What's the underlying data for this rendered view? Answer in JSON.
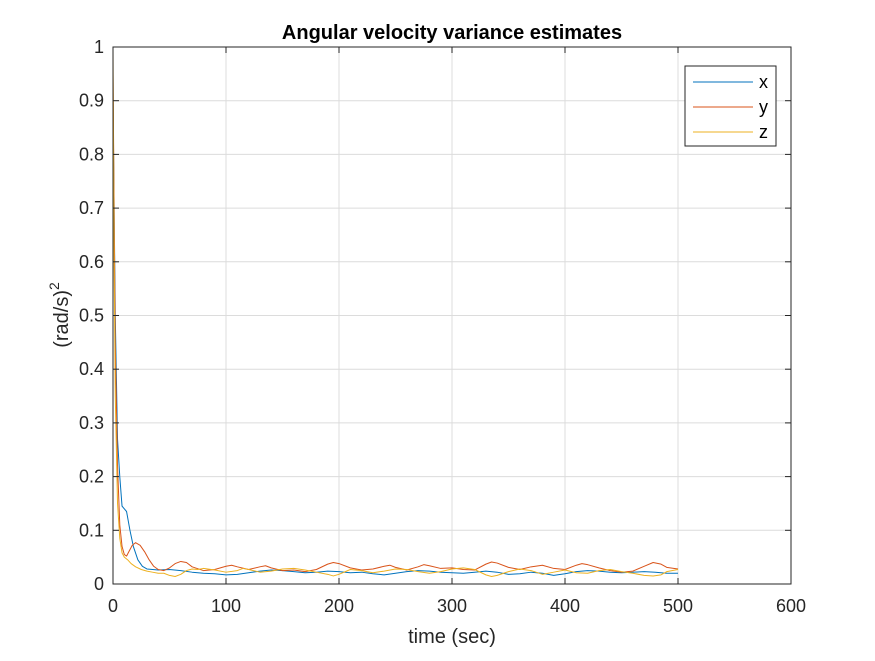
{
  "chart_data": {
    "type": "line",
    "title": "Angular velocity variance estimates",
    "xlabel": "time (sec)",
    "ylabel_base": "(rad/s)",
    "ylabel_exponent": "2",
    "xlim": [
      0,
      600
    ],
    "ylim": [
      0,
      1
    ],
    "xticks": [
      0,
      100,
      200,
      300,
      400,
      500,
      600
    ],
    "yticks": [
      0,
      0.1,
      0.2,
      0.3,
      0.4,
      0.5,
      0.6,
      0.7,
      0.8,
      0.9,
      1
    ],
    "xtick_labels": [
      "0",
      "100",
      "200",
      "300",
      "400",
      "500",
      "600"
    ],
    "ytick_labels": [
      "0",
      "0.1",
      "0.2",
      "0.3",
      "0.4",
      "0.5",
      "0.6",
      "0.7",
      "0.8",
      "0.9",
      "1"
    ],
    "grid": true,
    "legend_position": "top-right",
    "series": [
      {
        "name": "x",
        "color": "#0072BD",
        "points": [
          [
            0,
            0.9
          ],
          [
            2,
            0.5
          ],
          [
            4,
            0.27
          ],
          [
            6,
            0.2
          ],
          [
            8,
            0.145
          ],
          [
            10,
            0.14
          ],
          [
            12,
            0.135
          ],
          [
            15,
            0.1
          ],
          [
            18,
            0.07
          ],
          [
            22,
            0.045
          ],
          [
            26,
            0.033
          ],
          [
            30,
            0.028
          ],
          [
            35,
            0.027
          ],
          [
            40,
            0.026
          ],
          [
            50,
            0.027
          ],
          [
            60,
            0.025
          ],
          [
            70,
            0.022
          ],
          [
            80,
            0.02
          ],
          [
            90,
            0.019
          ],
          [
            100,
            0.017
          ],
          [
            110,
            0.018
          ],
          [
            120,
            0.021
          ],
          [
            130,
            0.024
          ],
          [
            140,
            0.026
          ],
          [
            150,
            0.025
          ],
          [
            160,
            0.023
          ],
          [
            170,
            0.021
          ],
          [
            180,
            0.022
          ],
          [
            190,
            0.024
          ],
          [
            200,
            0.023
          ],
          [
            210,
            0.021
          ],
          [
            220,
            0.022
          ],
          [
            230,
            0.019
          ],
          [
            240,
            0.017
          ],
          [
            250,
            0.02
          ],
          [
            260,
            0.023
          ],
          [
            270,
            0.025
          ],
          [
            280,
            0.024
          ],
          [
            290,
            0.022
          ],
          [
            300,
            0.021
          ],
          [
            310,
            0.02
          ],
          [
            320,
            0.022
          ],
          [
            330,
            0.024
          ],
          [
            340,
            0.022
          ],
          [
            350,
            0.018
          ],
          [
            360,
            0.019
          ],
          [
            370,
            0.022
          ],
          [
            380,
            0.02
          ],
          [
            390,
            0.016
          ],
          [
            400,
            0.019
          ],
          [
            410,
            0.023
          ],
          [
            420,
            0.025
          ],
          [
            430,
            0.024
          ],
          [
            440,
            0.022
          ],
          [
            450,
            0.021
          ],
          [
            460,
            0.022
          ],
          [
            470,
            0.023
          ],
          [
            480,
            0.022
          ],
          [
            490,
            0.02
          ],
          [
            500,
            0.02
          ]
        ]
      },
      {
        "name": "y",
        "color": "#D95319",
        "points": [
          [
            0,
            0.95
          ],
          [
            2,
            0.45
          ],
          [
            4,
            0.22
          ],
          [
            6,
            0.11
          ],
          [
            8,
            0.07
          ],
          [
            10,
            0.055
          ],
          [
            12,
            0.052
          ],
          [
            14,
            0.06
          ],
          [
            17,
            0.072
          ],
          [
            20,
            0.077
          ],
          [
            24,
            0.072
          ],
          [
            28,
            0.06
          ],
          [
            32,
            0.045
          ],
          [
            36,
            0.033
          ],
          [
            40,
            0.027
          ],
          [
            45,
            0.025
          ],
          [
            50,
            0.03
          ],
          [
            55,
            0.038
          ],
          [
            60,
            0.042
          ],
          [
            65,
            0.04
          ],
          [
            70,
            0.032
          ],
          [
            80,
            0.025
          ],
          [
            90,
            0.027
          ],
          [
            100,
            0.033
          ],
          [
            105,
            0.035
          ],
          [
            110,
            0.032
          ],
          [
            120,
            0.027
          ],
          [
            130,
            0.032
          ],
          [
            135,
            0.034
          ],
          [
            140,
            0.03
          ],
          [
            150,
            0.025
          ],
          [
            160,
            0.026
          ],
          [
            170,
            0.023
          ],
          [
            180,
            0.027
          ],
          [
            190,
            0.037
          ],
          [
            195,
            0.04
          ],
          [
            200,
            0.038
          ],
          [
            210,
            0.03
          ],
          [
            220,
            0.026
          ],
          [
            230,
            0.028
          ],
          [
            240,
            0.033
          ],
          [
            245,
            0.035
          ],
          [
            250,
            0.031
          ],
          [
            260,
            0.026
          ],
          [
            270,
            0.032
          ],
          [
            275,
            0.036
          ],
          [
            280,
            0.034
          ],
          [
            290,
            0.029
          ],
          [
            300,
            0.03
          ],
          [
            310,
            0.027
          ],
          [
            320,
            0.026
          ],
          [
            330,
            0.037
          ],
          [
            335,
            0.041
          ],
          [
            340,
            0.039
          ],
          [
            350,
            0.031
          ],
          [
            360,
            0.027
          ],
          [
            370,
            0.032
          ],
          [
            380,
            0.035
          ],
          [
            390,
            0.029
          ],
          [
            400,
            0.027
          ],
          [
            410,
            0.035
          ],
          [
            415,
            0.038
          ],
          [
            420,
            0.036
          ],
          [
            430,
            0.03
          ],
          [
            440,
            0.025
          ],
          [
            450,
            0.022
          ],
          [
            460,
            0.024
          ],
          [
            470,
            0.033
          ],
          [
            478,
            0.04
          ],
          [
            485,
            0.037
          ],
          [
            490,
            0.031
          ],
          [
            500,
            0.028
          ]
        ]
      },
      {
        "name": "z",
        "color": "#EDB120",
        "points": [
          [
            0,
            1.0
          ],
          [
            1,
            0.6
          ],
          [
            2,
            0.35
          ],
          [
            4,
            0.15
          ],
          [
            6,
            0.085
          ],
          [
            8,
            0.058
          ],
          [
            10,
            0.05
          ],
          [
            13,
            0.045
          ],
          [
            16,
            0.038
          ],
          [
            20,
            0.032
          ],
          [
            25,
            0.027
          ],
          [
            30,
            0.024
          ],
          [
            35,
            0.022
          ],
          [
            40,
            0.02
          ],
          [
            45,
            0.02
          ],
          [
            50,
            0.016
          ],
          [
            55,
            0.014
          ],
          [
            60,
            0.018
          ],
          [
            65,
            0.025
          ],
          [
            70,
            0.028
          ],
          [
            75,
            0.027
          ],
          [
            80,
            0.029
          ],
          [
            90,
            0.026
          ],
          [
            100,
            0.022
          ],
          [
            110,
            0.025
          ],
          [
            115,
            0.029
          ],
          [
            120,
            0.027
          ],
          [
            130,
            0.022
          ],
          [
            140,
            0.024
          ],
          [
            150,
            0.028
          ],
          [
            160,
            0.029
          ],
          [
            170,
            0.026
          ],
          [
            180,
            0.022
          ],
          [
            190,
            0.018
          ],
          [
            195,
            0.015
          ],
          [
            200,
            0.018
          ],
          [
            210,
            0.027
          ],
          [
            220,
            0.025
          ],
          [
            230,
            0.021
          ],
          [
            240,
            0.024
          ],
          [
            250,
            0.028
          ],
          [
            260,
            0.027
          ],
          [
            270,
            0.023
          ],
          [
            280,
            0.02
          ],
          [
            290,
            0.023
          ],
          [
            300,
            0.028
          ],
          [
            310,
            0.03
          ],
          [
            320,
            0.027
          ],
          [
            330,
            0.017
          ],
          [
            335,
            0.014
          ],
          [
            340,
            0.016
          ],
          [
            350,
            0.023
          ],
          [
            360,
            0.028
          ],
          [
            370,
            0.025
          ],
          [
            380,
            0.018
          ],
          [
            390,
            0.022
          ],
          [
            400,
            0.026
          ],
          [
            410,
            0.021
          ],
          [
            420,
            0.02
          ],
          [
            430,
            0.025
          ],
          [
            440,
            0.027
          ],
          [
            450,
            0.023
          ],
          [
            460,
            0.02
          ],
          [
            470,
            0.016
          ],
          [
            478,
            0.015
          ],
          [
            485,
            0.017
          ],
          [
            490,
            0.023
          ],
          [
            500,
            0.027
          ]
        ]
      }
    ]
  }
}
